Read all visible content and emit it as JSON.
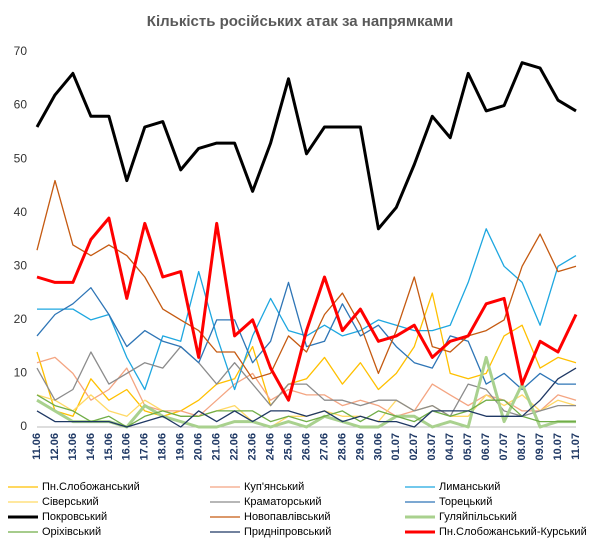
{
  "chart_data": {
    "type": "line",
    "title": "Кількість російських атак за напрямками",
    "categories": [
      "11.06",
      "12.06",
      "13.06",
      "14.06",
      "15.06",
      "16.06",
      "17.06",
      "18.06",
      "19.06",
      "20.06",
      "21.06",
      "22.06",
      "23.06",
      "24.06",
      "25.06",
      "26.06",
      "27.06",
      "28.06",
      "29.06",
      "30.06",
      "01.07",
      "02.07",
      "03.07",
      "04.07",
      "05.07",
      "06.07",
      "07.07",
      "08.07",
      "09.07",
      "10.07",
      "11.07"
    ],
    "ylim": [
      0,
      70
    ],
    "yticks": [
      0,
      10,
      20,
      30,
      40,
      50,
      60,
      70
    ],
    "grid": false,
    "series": [
      {
        "name": "Пн.Слобожанський",
        "color": "#ffc000",
        "linewidth": 1.3,
        "values": [
          14,
          3,
          2,
          9,
          5,
          7,
          3,
          2,
          3,
          5,
          8,
          9,
          15,
          4,
          8,
          9,
          13,
          8,
          12,
          7,
          10,
          15,
          25,
          10,
          9,
          10,
          17,
          19,
          11,
          13,
          12
        ]
      },
      {
        "name": "Куп'янський",
        "color": "#f4a582",
        "linewidth": 1.3,
        "values": [
          12,
          13,
          10,
          5,
          7,
          11,
          4,
          3,
          3,
          2,
          5,
          8,
          10,
          5,
          7,
          6,
          6,
          4,
          5,
          4,
          2,
          3,
          8,
          6,
          4,
          6,
          5,
          3,
          3,
          6,
          5
        ]
      },
      {
        "name": "Лиманський",
        "color": "#1ea7e0",
        "linewidth": 1.3,
        "values": [
          22,
          22,
          22,
          20,
          21,
          13,
          7,
          17,
          16,
          29,
          17,
          7,
          17,
          24,
          18,
          17,
          19,
          17,
          18,
          20,
          19,
          18,
          18,
          19,
          27,
          37,
          30,
          27,
          19,
          30,
          32
        ]
      },
      {
        "name": "Сіверський",
        "color": "#ffd966",
        "linewidth": 1.3,
        "values": [
          6,
          5,
          3,
          6,
          3,
          2,
          5,
          3,
          2,
          2,
          3,
          4,
          1,
          0,
          2,
          2,
          3,
          2,
          2,
          1,
          5,
          3,
          4,
          2,
          2,
          6,
          4,
          6,
          3,
          5,
          4
        ]
      },
      {
        "name": "Краматорський",
        "color": "#8c8c8c",
        "linewidth": 1.3,
        "values": [
          11,
          5,
          7,
          14,
          8,
          10,
          12,
          11,
          15,
          12,
          8,
          12,
          8,
          4,
          8,
          8,
          5,
          5,
          4,
          5,
          5,
          3,
          4,
          2,
          8,
          7,
          3,
          2,
          3,
          4,
          4
        ]
      },
      {
        "name": "Торецький",
        "color": "#2e75b6",
        "linewidth": 1.3,
        "values": [
          17,
          21,
          23,
          26,
          21,
          15,
          18,
          16,
          15,
          12,
          20,
          20,
          12,
          16,
          27,
          15,
          16,
          23,
          17,
          19,
          15,
          12,
          11,
          17,
          16,
          8,
          10,
          7,
          10,
          8,
          8
        ]
      },
      {
        "name": "Покровський",
        "color": "#000000",
        "linewidth": 3,
        "values": [
          56,
          62,
          66,
          58,
          58,
          46,
          56,
          57,
          48,
          52,
          53,
          53,
          44,
          53,
          65,
          51,
          56,
          56,
          56,
          37,
          41,
          49,
          58,
          54,
          66,
          59,
          60,
          68,
          67,
          61,
          59
        ]
      },
      {
        "name": "Новопавлівський",
        "color": "#c55a11",
        "linewidth": 1.3,
        "values": [
          33,
          46,
          34,
          32,
          34,
          32,
          28,
          22,
          20,
          18,
          14,
          14,
          9,
          10,
          17,
          14,
          21,
          25,
          19,
          10,
          18,
          28,
          15,
          14,
          17,
          18,
          20,
          30,
          36,
          29,
          30
        ]
      },
      {
        "name": "Гуляйпільський",
        "color": "#a9d18e",
        "linewidth": 3,
        "values": [
          5,
          3,
          1,
          1,
          1,
          0,
          4,
          2,
          1,
          0,
          0,
          1,
          1,
          0,
          1,
          0,
          2,
          1,
          0,
          0,
          2,
          2,
          0,
          1,
          0,
          13,
          1,
          8,
          0,
          1,
          1
        ]
      },
      {
        "name": "Оріхівський",
        "color": "#70ad47",
        "linewidth": 1.3,
        "values": [
          6,
          4,
          3,
          1,
          2,
          0,
          2,
          3,
          2,
          2,
          3,
          3,
          3,
          1,
          2,
          1,
          2,
          3,
          1,
          3,
          2,
          1,
          3,
          2,
          3,
          5,
          5,
          2,
          1,
          1,
          1
        ]
      },
      {
        "name": "Придніпровський",
        "color": "#1f3864",
        "linewidth": 1.3,
        "values": [
          3,
          1,
          1,
          1,
          1,
          0,
          1,
          2,
          0,
          3,
          1,
          3,
          1,
          3,
          3,
          2,
          3,
          1,
          2,
          1,
          1,
          0,
          3,
          3,
          3,
          2,
          2,
          2,
          5,
          9,
          11
        ]
      },
      {
        "name": "Пн.Слобожанський-Курський",
        "color": "#ff0000",
        "linewidth": 3,
        "values": [
          28,
          27,
          27,
          35,
          39,
          24,
          38,
          28,
          29,
          13,
          38,
          17,
          20,
          11,
          5,
          18,
          28,
          18,
          22,
          16,
          17,
          19,
          13,
          16,
          17,
          23,
          24,
          8,
          16,
          14,
          21
        ]
      }
    ]
  }
}
